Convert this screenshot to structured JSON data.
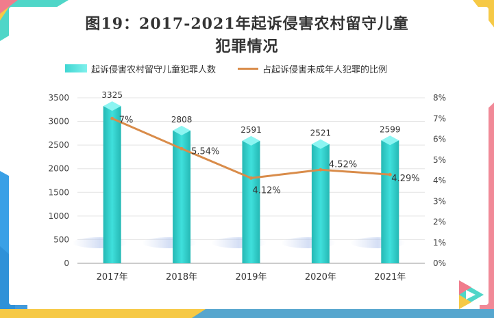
{
  "chart_data": {
    "type": "bar",
    "title": "图19：2017-2021年起诉侵害农村留守儿童",
    "subtitle": "犯罪情况",
    "categories": [
      "2017年",
      "2018年",
      "2019年",
      "2020年",
      "2021年"
    ],
    "series": [
      {
        "name": "起诉侵害农村留守儿童犯罪人数",
        "type": "bar",
        "axis": "left",
        "values": [
          3325,
          2808,
          2591,
          2521,
          2599
        ],
        "labels": [
          "3325",
          "2808",
          "2591",
          "2521",
          "2599"
        ]
      },
      {
        "name": "占起诉侵害未成年人犯罪的比例",
        "type": "line",
        "axis": "right",
        "values": [
          7.0,
          5.54,
          4.12,
          4.52,
          4.29
        ],
        "labels": [
          "7%",
          "5.54%",
          "4.12%",
          "4.52%",
          "4.29%"
        ]
      }
    ],
    "ylim_left": [
      0,
      3500
    ],
    "yticks_left": [
      "0",
      "500",
      "1000",
      "1500",
      "2000",
      "2500",
      "3000",
      "3500"
    ],
    "ylim_right": [
      0,
      8
    ],
    "yticks_right": [
      "0%",
      "1%",
      "2%",
      "3%",
      "4%",
      "5%",
      "6%",
      "7%",
      "8%"
    ],
    "grid": true,
    "legend_position": "top",
    "colors": {
      "bar": "#3fe0dc",
      "bar_side": "#25b8b4",
      "bar_top": "#8cf5f2",
      "line": "#d98c4a",
      "grid": "#e3e3e3",
      "frame_blue": "#3aa0e6",
      "frame_teal": "#4fd6c8",
      "frame_pink": "#f07c8c",
      "frame_yellow": "#f6c945"
    }
  }
}
